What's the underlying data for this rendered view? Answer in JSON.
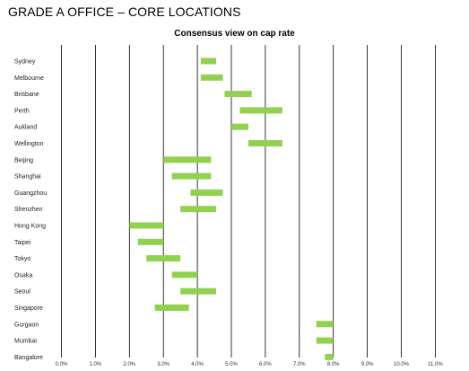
{
  "page": {
    "heading": "GRADE A OFFICE – CORE LOCATIONS"
  },
  "chart_data": {
    "type": "bar",
    "subtype": "floating-range-horizontal",
    "title": "Consensus view on cap rate",
    "xlabel": "",
    "ylabel": "",
    "xlim": [
      0,
      11
    ],
    "x_ticks": [
      0,
      1,
      2,
      3,
      4,
      5,
      6,
      7,
      8,
      9,
      10,
      11
    ],
    "x_tick_labels": [
      "0.0%",
      "1.0%",
      "2.0%",
      "3.0%",
      "4.0%",
      "5.0%",
      "6.0%",
      "7.0%",
      "8.0%",
      "9.0%",
      "10.0%",
      "11.0%"
    ],
    "grid": "vertical",
    "legend": "none",
    "bar_color": "#92d050",
    "grid_color": "#000000",
    "categories": [
      "Sydney",
      "Melbourne",
      "Brisbane",
      "Perth",
      "Aukland",
      "Wellington",
      "Beijing",
      "Shanghai",
      "Guangzhou",
      "Shenzhen",
      "Hong Kong",
      "Taipei",
      "Tokyo",
      "Osaka",
      "Seoul",
      "Singapore",
      "Gurgaon",
      "Mumbai",
      "Bangalore"
    ],
    "ranges": [
      [
        4.1,
        4.55
      ],
      [
        4.1,
        4.75
      ],
      [
        4.8,
        5.6
      ],
      [
        5.25,
        6.5
      ],
      [
        5.0,
        5.5
      ],
      [
        5.5,
        6.5
      ],
      [
        3.0,
        4.4
      ],
      [
        3.25,
        4.4
      ],
      [
        3.8,
        4.75
      ],
      [
        3.5,
        4.55
      ],
      [
        2.0,
        3.0
      ],
      [
        2.25,
        3.0
      ],
      [
        2.5,
        3.5
      ],
      [
        3.25,
        4.0
      ],
      [
        3.5,
        4.55
      ],
      [
        2.75,
        3.75
      ],
      [
        7.5,
        8.0
      ],
      [
        7.5,
        8.0
      ],
      [
        7.75,
        8.0
      ]
    ]
  }
}
